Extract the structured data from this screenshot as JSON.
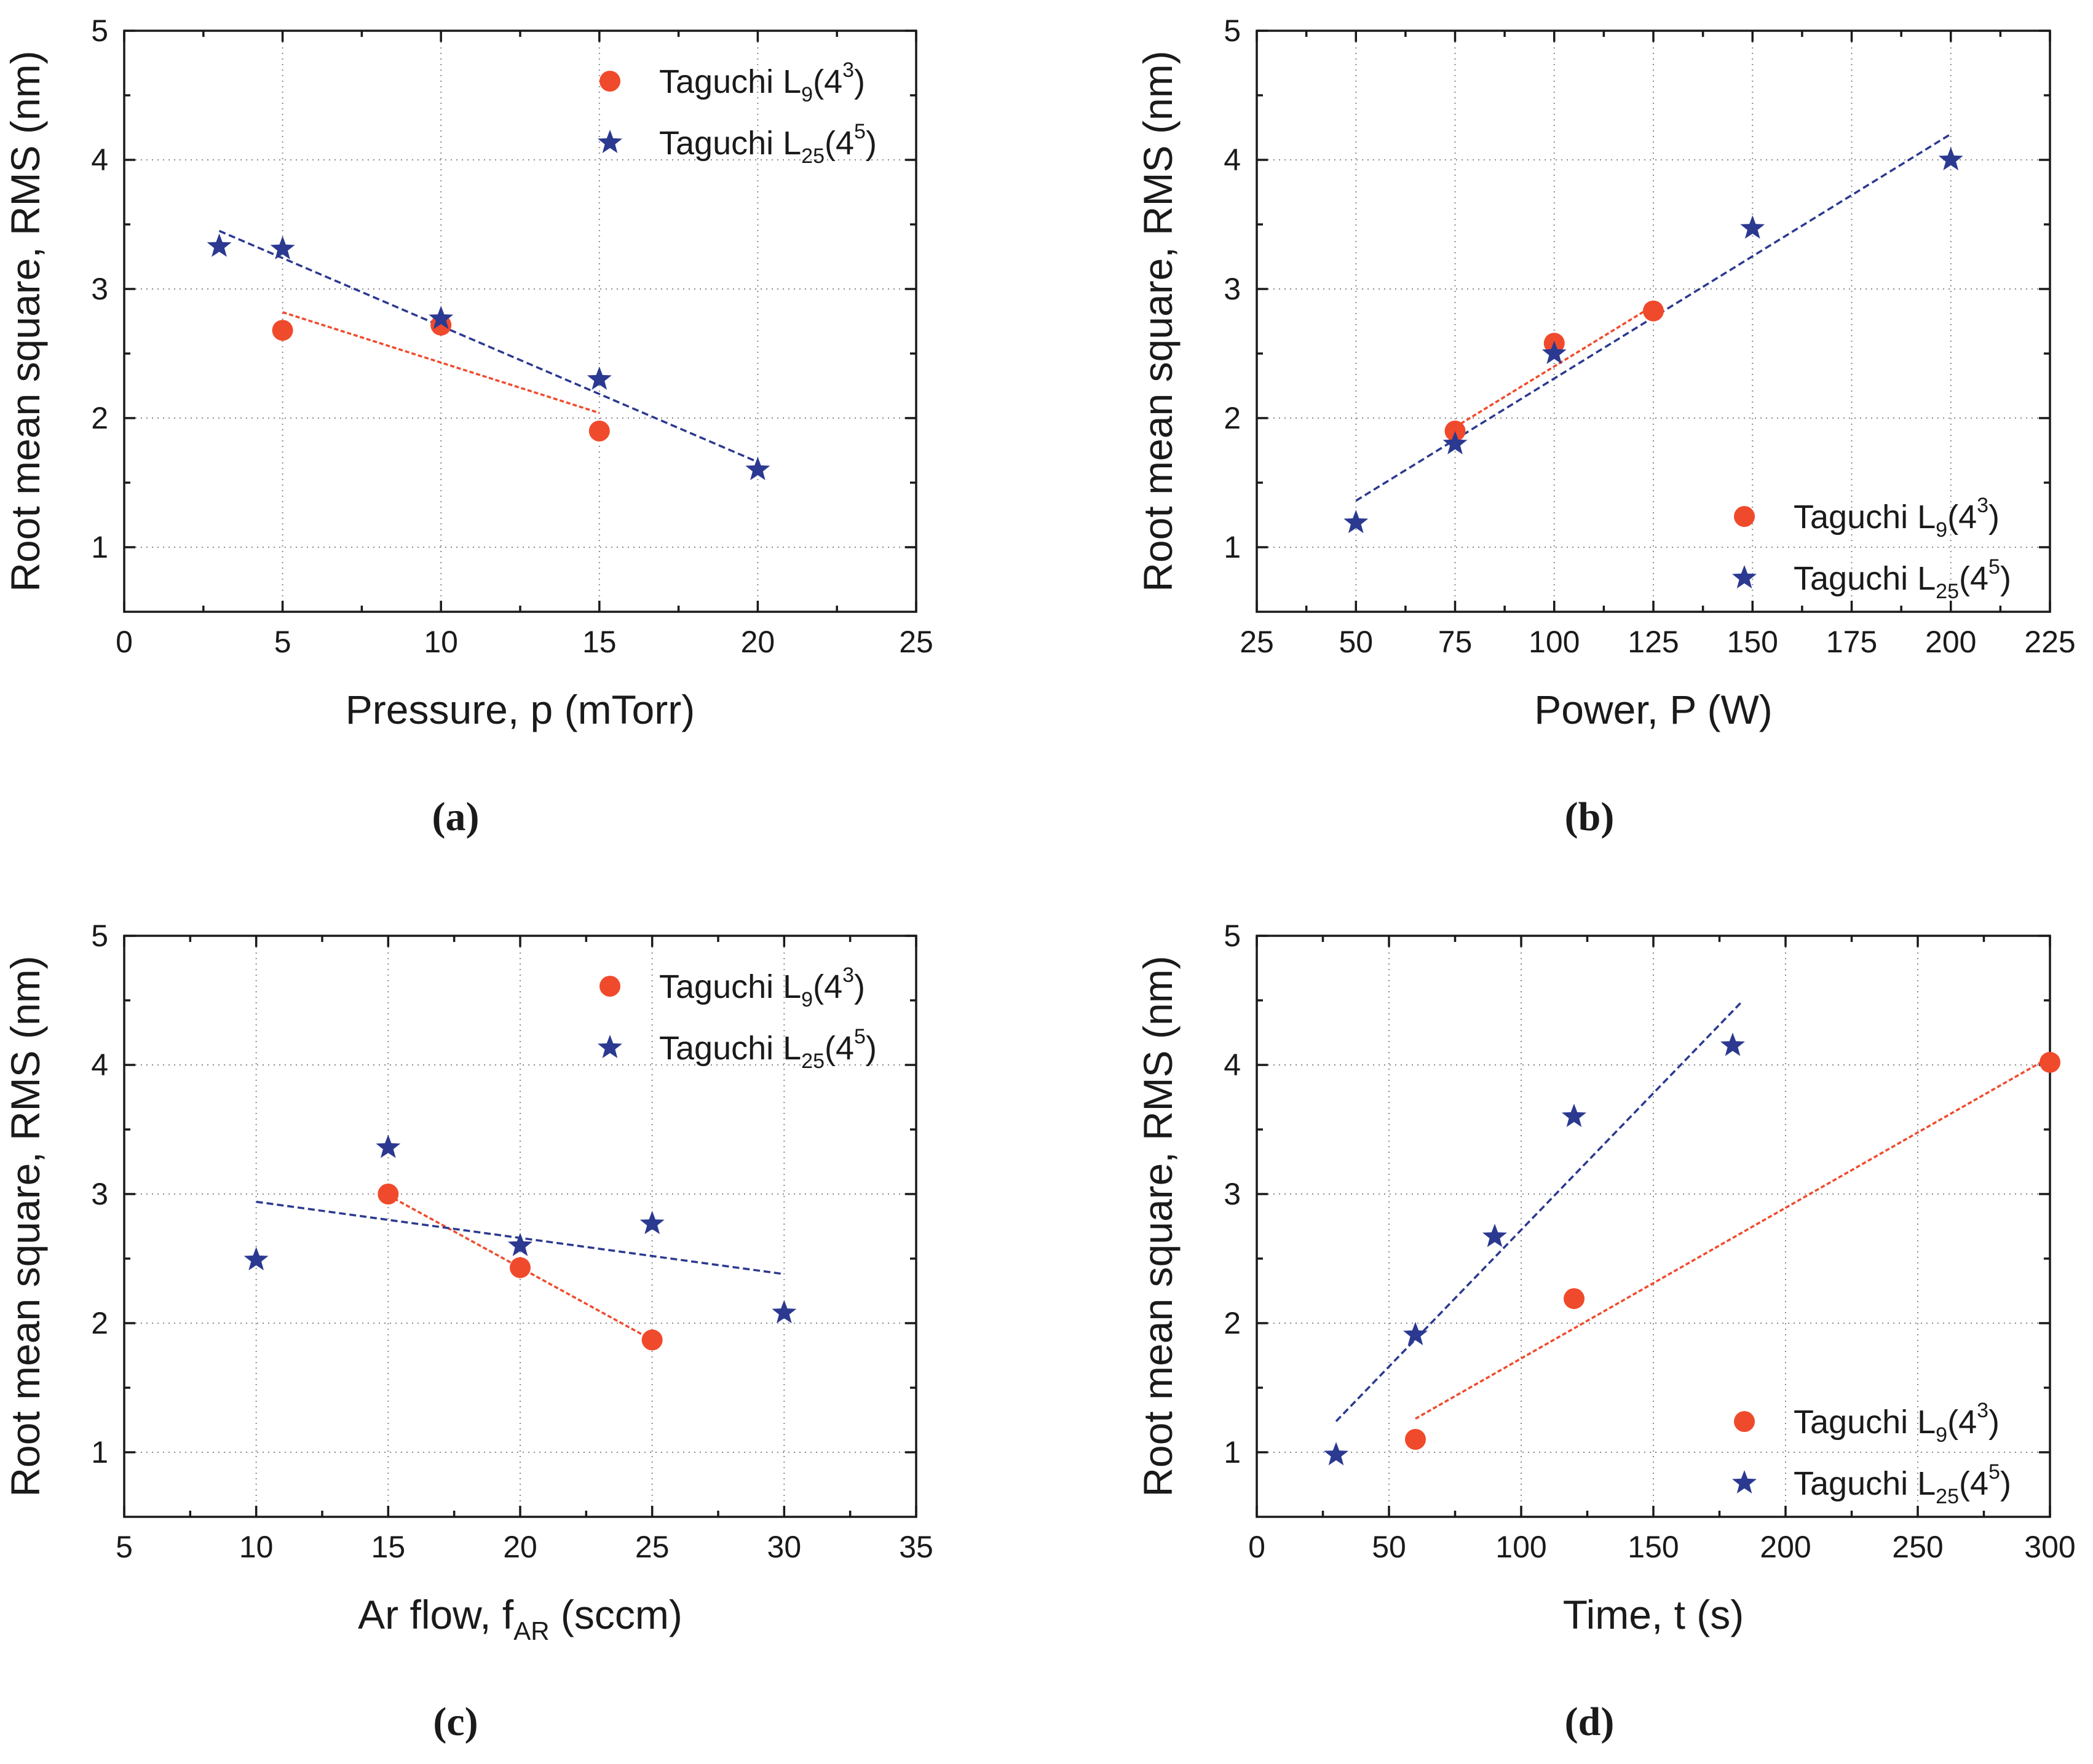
{
  "colors": {
    "red": "#f04a2c",
    "blue": "#2b3990"
  },
  "chart_data": [
    {
      "type": "scatter",
      "panel_label": "(a)",
      "xlabel": "Pressure, p (mTorr)",
      "xlabel_sub": "",
      "xlabel_tail": "",
      "ylabel": "Root mean square, RMS (nm)",
      "xlim": [
        0,
        25
      ],
      "ylim": [
        0.5,
        5
      ],
      "xticks": [
        0,
        5,
        10,
        15,
        20,
        25
      ],
      "yticks": [
        1,
        2,
        3,
        4,
        5
      ],
      "grid": true,
      "legend_position": "top-right",
      "series": [
        {
          "name_base": "Taguchi L",
          "name_sub": "9",
          "name_paren": "(4",
          "name_sup": "3",
          "name_close": ")",
          "marker": "circle",
          "points": [
            [
              5,
              2.68
            ],
            [
              10,
              2.72
            ],
            [
              15,
              1.9
            ]
          ],
          "fit": [
            [
              5,
              2.82
            ],
            [
              15,
              2.04
            ]
          ]
        },
        {
          "name_base": "Taguchi L",
          "name_sub": "25",
          "name_paren": "(4",
          "name_sup": "5",
          "name_close": ")",
          "marker": "star",
          "points": [
            [
              3,
              3.33
            ],
            [
              5,
              3.31
            ],
            [
              10,
              2.77
            ],
            [
              15,
              2.3
            ],
            [
              20,
              1.6
            ]
          ],
          "fit": [
            [
              3,
              3.45
            ],
            [
              20,
              1.66
            ]
          ]
        }
      ]
    },
    {
      "type": "scatter",
      "panel_label": "(b)",
      "xlabel": "Power, P (W)",
      "xlabel_sub": "",
      "xlabel_tail": "",
      "ylabel": "Root mean square, RMS (nm)",
      "xlim": [
        25,
        225
      ],
      "ylim": [
        0.5,
        5
      ],
      "xticks": [
        25,
        50,
        75,
        100,
        125,
        150,
        175,
        200,
        225
      ],
      "yticks": [
        1,
        2,
        3,
        4,
        5
      ],
      "grid": true,
      "legend_position": "bottom-right",
      "series": [
        {
          "name_base": "Taguchi L",
          "name_sub": "9",
          "name_paren": "(4",
          "name_sup": "3",
          "name_close": ")",
          "marker": "circle",
          "points": [
            [
              75,
              1.9
            ],
            [
              100,
              2.58
            ],
            [
              125,
              2.83
            ]
          ],
          "fit": [
            [
              75,
              1.93
            ],
            [
              125,
              2.87
            ]
          ]
        },
        {
          "name_base": "Taguchi L",
          "name_sub": "25",
          "name_paren": "(4",
          "name_sup": "5",
          "name_close": ")",
          "marker": "star",
          "points": [
            [
              50,
              1.19
            ],
            [
              75,
              1.8
            ],
            [
              100,
              2.5
            ],
            [
              150,
              3.47
            ],
            [
              200,
              4.0
            ]
          ],
          "fit": [
            [
              50,
              1.36
            ],
            [
              200,
              4.2
            ]
          ]
        }
      ]
    },
    {
      "type": "scatter",
      "panel_label": "(c)",
      "xlabel": "Ar flow, f",
      "xlabel_sub": "AR",
      "xlabel_tail": " (sccm)",
      "ylabel": "Root mean square, RMS (nm)",
      "xlim": [
        5,
        35
      ],
      "ylim": [
        0.5,
        5
      ],
      "xticks": [
        5,
        10,
        15,
        20,
        25,
        30,
        35
      ],
      "yticks": [
        1,
        2,
        3,
        4,
        5
      ],
      "grid": true,
      "legend_position": "top-right",
      "series": [
        {
          "name_base": "Taguchi L",
          "name_sub": "9",
          "name_paren": "(4",
          "name_sup": "3",
          "name_close": ")",
          "marker": "circle",
          "points": [
            [
              15,
              3.0
            ],
            [
              20,
              2.43
            ],
            [
              25,
              1.87
            ]
          ],
          "fit": [
            [
              15,
              2.99
            ],
            [
              25,
              1.87
            ]
          ]
        },
        {
          "name_base": "Taguchi L",
          "name_sub": "25",
          "name_paren": "(4",
          "name_sup": "5",
          "name_close": ")",
          "marker": "star",
          "points": [
            [
              10,
              2.49
            ],
            [
              15,
              3.36
            ],
            [
              20,
              2.6
            ],
            [
              25,
              2.77
            ],
            [
              30,
              2.08
            ]
          ],
          "fit": [
            [
              10,
              2.94
            ],
            [
              30,
              2.38
            ]
          ]
        }
      ]
    },
    {
      "type": "scatter",
      "panel_label": "(d)",
      "xlabel": "Time, t (s)",
      "xlabel_sub": "",
      "xlabel_tail": "",
      "ylabel": "Root mean square, RMS (nm)",
      "xlim": [
        0,
        300
      ],
      "ylim": [
        0.5,
        5
      ],
      "xticks": [
        0,
        50,
        100,
        150,
        200,
        250,
        300
      ],
      "yticks": [
        1,
        2,
        3,
        4,
        5
      ],
      "grid": true,
      "legend_position": "bottom-right",
      "series": [
        {
          "name_base": "Taguchi L",
          "name_sub": "9",
          "name_paren": "(4",
          "name_sup": "3",
          "name_close": ")",
          "marker": "circle",
          "points": [
            [
              60,
              1.1
            ],
            [
              120,
              2.19
            ],
            [
              300,
              4.02
            ]
          ],
          "fit": [
            [
              60,
              1.26
            ],
            [
              300,
              4.06
            ]
          ]
        },
        {
          "name_base": "Taguchi L",
          "name_sub": "25",
          "name_paren": "(4",
          "name_sup": "5",
          "name_close": ")",
          "marker": "star",
          "points": [
            [
              30,
              0.98
            ],
            [
              60,
              1.91
            ],
            [
              90,
              2.67
            ],
            [
              120,
              3.6
            ],
            [
              180,
              4.15
            ]
          ],
          "fit": [
            [
              30,
              1.24
            ],
            [
              183,
              4.48
            ]
          ]
        }
      ]
    }
  ]
}
